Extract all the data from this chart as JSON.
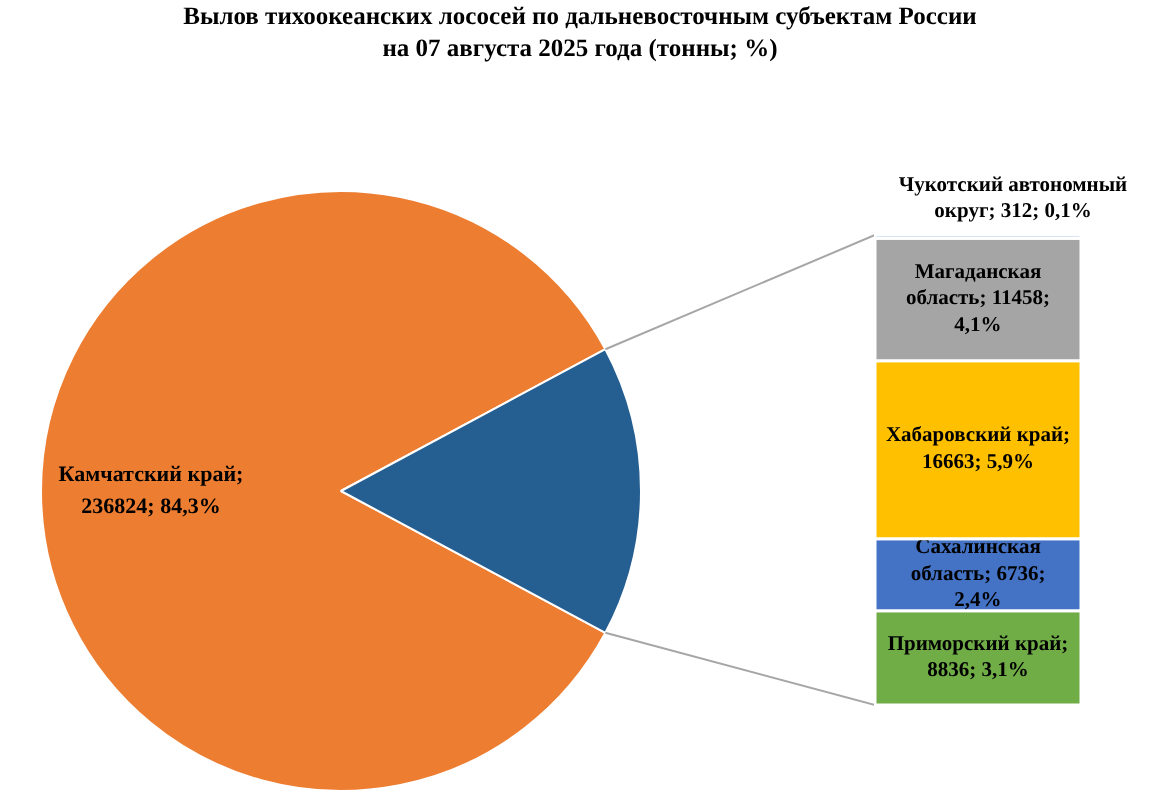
{
  "chart_data": [
    {
      "type": "pie",
      "title": "Вылов тихоокеанских лососей по дальневосточным субъектам России\nна 07 августа 2025 года (тонны; %)",
      "categories": [
        null,
        null
      ],
      "values": [
        236824,
        44005
      ],
      "colors": [
        "#ed7d31",
        "#255e91"
      ],
      "value_labels": [
        "Камчатский край; 236824; 84,3%",
        null
      ]
    },
    {
      "type": "bar",
      "stacked": true,
      "categories": [
        null
      ],
      "series": [
        {
          "color": "#70ad47",
          "values": [
            8836
          ],
          "value_labels": [
            "Приморский край; 8836; 3,1%"
          ]
        },
        {
          "color": "#4472c4",
          "values": [
            6736
          ],
          "value_labels": [
            "Сахалинская область; 6736; 2,4%"
          ]
        },
        {
          "color": "#ffc000",
          "values": [
            16663
          ],
          "value_labels": [
            "Хабаровский край; 16663; 5,9%"
          ]
        },
        {
          "color": "#a5a5a5",
          "values": [
            11458
          ],
          "value_labels": [
            "Магаданская область; 11458; 4,1%"
          ]
        },
        {
          "color": "#5b9bd5",
          "values": [
            312
          ],
          "value_labels": [
            "Чукотский автономный округ; 312; 0,1%"
          ]
        }
      ]
    }
  ]
}
